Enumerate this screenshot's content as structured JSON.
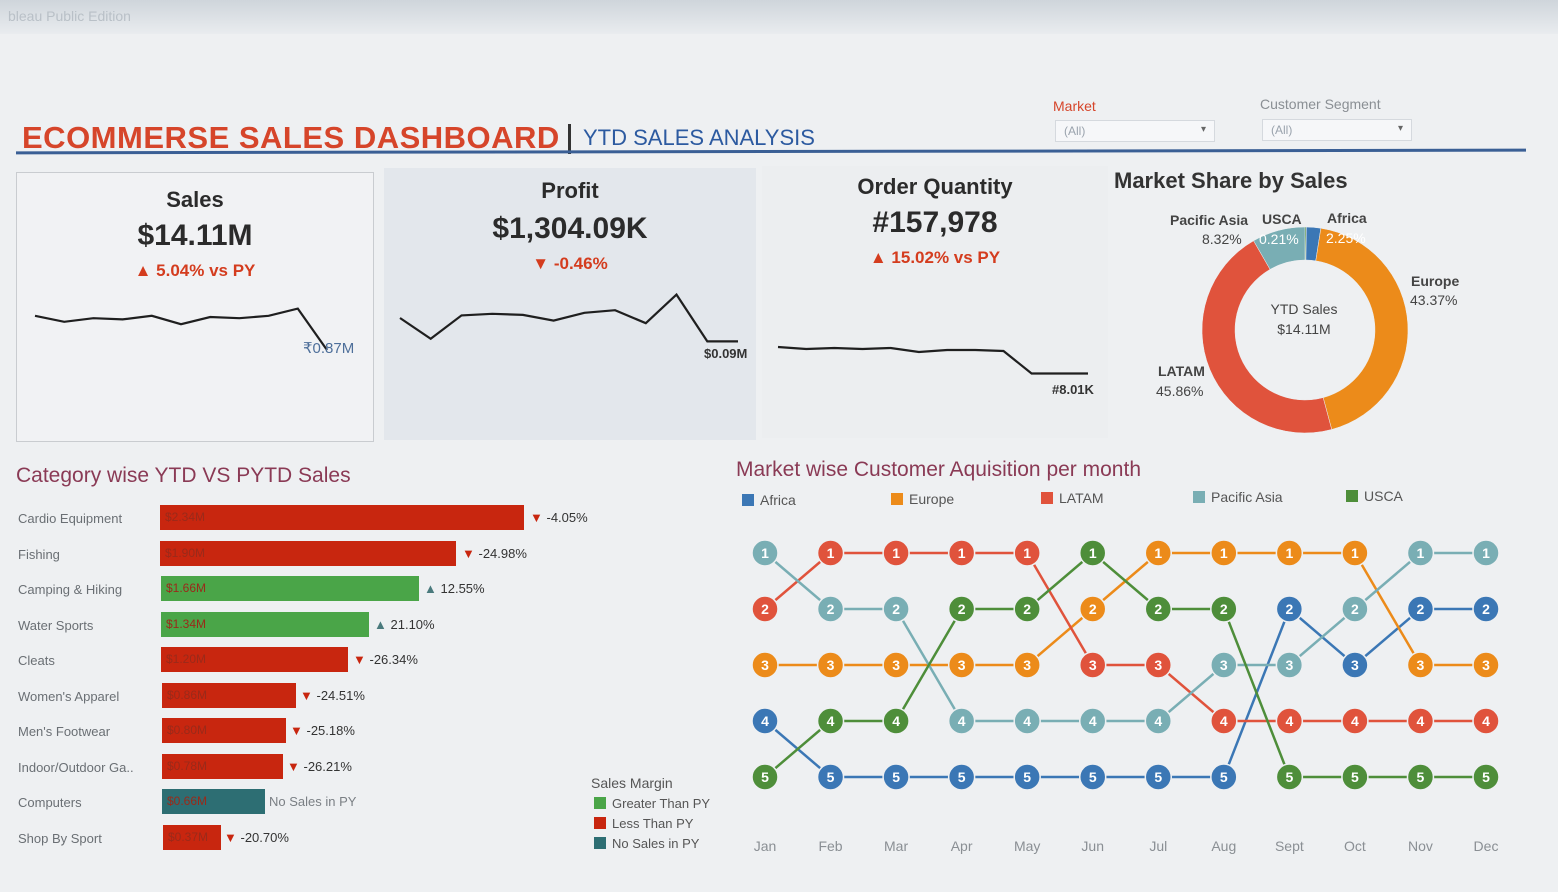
{
  "edition_text": "bleau Public Edition",
  "header": {
    "title": "ECOMMERSE SALES DASHBOARD",
    "subtitle": "YTD SALES ANALYSIS"
  },
  "filters": {
    "market_label": "Market",
    "market_value": "(All)",
    "segment_label": "Customer Segment",
    "segment_value": "(All)"
  },
  "kpis": {
    "sales": {
      "title": "Sales",
      "value": "$14.11M",
      "change": "5.04% vs PY",
      "last_label": "₹0.87M"
    },
    "profit": {
      "title": "Profit",
      "value": "$1,304.09K",
      "change": "-0.46%",
      "last_label": "$0.09M"
    },
    "quantity": {
      "title": "Order Quantity",
      "value": "#157,978",
      "change": "15.02% vs PY",
      "last_label": "#8.01K"
    }
  },
  "colors": {
    "accent_red": "#d6452a",
    "title_blue": "#2c5aa0",
    "greater": "#4aa548",
    "less": "#c8260f",
    "nosales": "#2d6e73",
    "africa": "#3b77b5",
    "europe": "#ec8b1a",
    "latam": "#e0533c",
    "pacific": "#79aeb4",
    "usca": "#4e8e3a"
  },
  "sparklines": {
    "sales": [
      0.62,
      0.52,
      0.58,
      0.56,
      0.62,
      0.48,
      0.6,
      0.58,
      0.62,
      0.74,
      0.05
    ],
    "profit": [
      0.5,
      0.1,
      0.55,
      0.58,
      0.56,
      0.45,
      0.6,
      0.65,
      0.4,
      0.95,
      0.05,
      0.05
    ],
    "quantity": [
      0.58,
      0.54,
      0.56,
      0.54,
      0.56,
      0.48,
      0.52,
      0.52,
      0.5,
      0.05,
      0.05,
      0.05
    ]
  },
  "market_share": {
    "title": "Market Share by Sales",
    "center_label": "YTD Sales",
    "center_value": "$14.11M",
    "slices": [
      {
        "name": "Africa",
        "pct_label": "2.25%",
        "value": 2.25,
        "color": "#3b77b5"
      },
      {
        "name": "Europe",
        "pct_label": "43.37%",
        "value": 43.37,
        "color": "#ec8b1a"
      },
      {
        "name": "LATAM",
        "pct_label": "45.86%",
        "value": 45.86,
        "color": "#e0533c"
      },
      {
        "name": "Pacific Asia",
        "pct_label": "8.32%",
        "value": 8.32,
        "color": "#79aeb4"
      },
      {
        "name": "USCA",
        "pct_label": "0.21%",
        "value": 0.21,
        "color": "#4e8e3a"
      }
    ]
  },
  "category": {
    "title": "Category wise YTD VS PYTD Sales",
    "legend_title": "Sales Margin",
    "legend": [
      "Greater Than PY",
      "Less Than PY",
      "No Sales in PY"
    ],
    "max": 2.34,
    "items": [
      {
        "name": "Cardio Equipment",
        "label": "$2.34M",
        "value": 2.34,
        "pct": "-4.05%",
        "dir": "down",
        "kind": "less"
      },
      {
        "name": "Fishing",
        "label": "$1.90M",
        "value": 1.9,
        "pct": "-24.98%",
        "dir": "down",
        "kind": "less"
      },
      {
        "name": "Camping & Hiking",
        "label": "$1.66M",
        "value": 1.66,
        "pct": "12.55%",
        "dir": "up",
        "kind": "greater"
      },
      {
        "name": "Water Sports",
        "label": "$1.34M",
        "value": 1.34,
        "pct": "21.10%",
        "dir": "up",
        "kind": "greater"
      },
      {
        "name": "Cleats",
        "label": "$1.20M",
        "value": 1.2,
        "pct": "-26.34%",
        "dir": "down",
        "kind": "less"
      },
      {
        "name": "Women's Apparel",
        "label": "$0.86M",
        "value": 0.86,
        "pct": "-24.51%",
        "dir": "down",
        "kind": "less"
      },
      {
        "name": "Men's Footwear",
        "label": "$0.80M",
        "value": 0.8,
        "pct": "-25.18%",
        "dir": "down",
        "kind": "less"
      },
      {
        "name": "Indoor/Outdoor Ga..",
        "label": "$0.78M",
        "value": 0.78,
        "pct": "-26.21%",
        "dir": "down",
        "kind": "less"
      },
      {
        "name": "Computers",
        "label": "$0.66M",
        "value": 0.66,
        "pct": "No Sales in PY",
        "dir": "none",
        "kind": "nosales"
      },
      {
        "name": "Shop By Sport",
        "label": "$0.37M",
        "value": 0.37,
        "pct": "-20.70%",
        "dir": "down",
        "kind": "less"
      }
    ]
  },
  "acquisition": {
    "title": "Market wise Customer Aquisition per month",
    "months": [
      "Jan",
      "Feb",
      "Mar",
      "Apr",
      "May",
      "Jun",
      "Jul",
      "Aug",
      "Sept",
      "Oct",
      "Nov",
      "Dec"
    ],
    "series": [
      {
        "name": "Africa",
        "color": "#3b77b5",
        "ranks": [
          4,
          5,
          5,
          5,
          5,
          5,
          5,
          5,
          2,
          3,
          2,
          2
        ]
      },
      {
        "name": "Europe",
        "color": "#ec8b1a",
        "ranks": [
          3,
          3,
          3,
          3,
          3,
          2,
          1,
          1,
          1,
          1,
          3,
          3
        ]
      },
      {
        "name": "LATAM",
        "color": "#e0533c",
        "ranks": [
          2,
          1,
          1,
          1,
          1,
          3,
          3,
          4,
          4,
          4,
          4,
          4
        ]
      },
      {
        "name": "Pacific Asia",
        "color": "#79aeb4",
        "ranks": [
          1,
          2,
          2,
          4,
          4,
          4,
          4,
          3,
          3,
          2,
          1,
          1
        ]
      },
      {
        "name": "USCA",
        "color": "#4e8e3a",
        "ranks": [
          5,
          4,
          4,
          2,
          2,
          1,
          2,
          2,
          5,
          5,
          5,
          5
        ]
      }
    ]
  },
  "chart_data": [
    {
      "type": "bar",
      "title": "Category wise YTD VS PYTD Sales",
      "categories": [
        "Cardio Equipment",
        "Fishing",
        "Camping & Hiking",
        "Water Sports",
        "Cleats",
        "Women's Apparel",
        "Men's Footwear",
        "Indoor/Outdoor Ga..",
        "Computers",
        "Shop By Sport"
      ],
      "values": [
        2.34,
        1.9,
        1.66,
        1.34,
        1.2,
        0.86,
        0.8,
        0.78,
        0.66,
        0.37
      ],
      "change_vs_py": [
        "-4.05%",
        "-24.98%",
        "12.55%",
        "21.10%",
        "-26.34%",
        "-24.51%",
        "-25.18%",
        "-26.21%",
        "No Sales in PY",
        "-20.70%"
      ]
    },
    {
      "type": "pie",
      "title": "Market Share by Sales",
      "categories": [
        "Africa",
        "Europe",
        "LATAM",
        "Pacific Asia",
        "USCA"
      ],
      "values": [
        2.25,
        43.37,
        45.86,
        8.32,
        0.21
      ]
    },
    {
      "type": "line",
      "title": "Market wise Customer Aquisition per month",
      "x": [
        "Jan",
        "Feb",
        "Mar",
        "Apr",
        "May",
        "Jun",
        "Jul",
        "Aug",
        "Sept",
        "Oct",
        "Nov",
        "Dec"
      ],
      "series": [
        {
          "name": "Africa",
          "values": [
            4,
            5,
            5,
            5,
            5,
            5,
            5,
            5,
            2,
            3,
            2,
            2
          ]
        },
        {
          "name": "Europe",
          "values": [
            3,
            3,
            3,
            3,
            3,
            2,
            1,
            1,
            1,
            1,
            3,
            3
          ]
        },
        {
          "name": "LATAM",
          "values": [
            2,
            1,
            1,
            1,
            1,
            3,
            3,
            4,
            4,
            4,
            4,
            4
          ]
        },
        {
          "name": "Pacific Asia",
          "values": [
            1,
            2,
            2,
            4,
            4,
            4,
            4,
            3,
            3,
            2,
            1,
            1
          ]
        },
        {
          "name": "USCA",
          "values": [
            5,
            4,
            4,
            2,
            2,
            1,
            2,
            2,
            5,
            5,
            5,
            5
          ]
        }
      ]
    }
  ]
}
